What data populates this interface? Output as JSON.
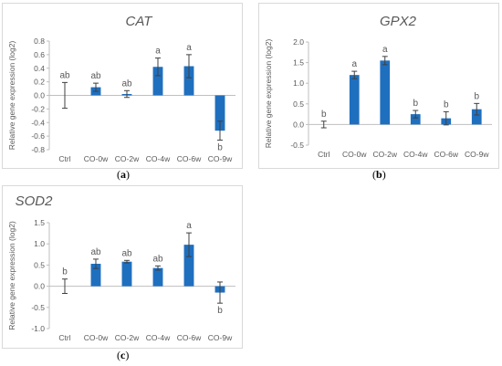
{
  "figure": {
    "captions": [
      "a",
      "b",
      "c"
    ]
  },
  "colors": {
    "bar": "#1f6fbf",
    "axis": "#bfbfbf",
    "text": "#595959",
    "frame": "#d9d9d9"
  },
  "chart_data": [
    {
      "type": "bar",
      "title": "CAT",
      "ylabel": "Relative gene expression (log2)",
      "categories": [
        "Ctrl",
        "CO-0w",
        "CO-2w",
        "CO-4w",
        "CO-6w",
        "CO-9w"
      ],
      "values": [
        0.0,
        0.12,
        0.02,
        0.42,
        0.43,
        -0.52
      ],
      "errors": [
        0.19,
        0.06,
        0.05,
        0.13,
        0.17,
        0.14
      ],
      "letters": [
        "ab",
        "ab",
        "ab",
        "a",
        "a",
        "b"
      ],
      "ylim": [
        -0.8,
        0.8
      ],
      "yticks": [
        "0.8",
        "0.6",
        "0.4",
        "0.2",
        "0.0",
        "-0.2",
        "-0.4",
        "-0.6",
        "-0.8"
      ],
      "grid": false
    },
    {
      "type": "bar",
      "title": "GPX2",
      "ylabel": "Relative gene expression (log2)",
      "categories": [
        "Ctrl",
        "CO-0w",
        "CO-2w",
        "CO-4w",
        "CO-6w",
        "CO-9w"
      ],
      "values": [
        0.0,
        1.2,
        1.55,
        0.25,
        0.15,
        0.37
      ],
      "errors": [
        0.08,
        0.09,
        0.1,
        0.09,
        0.16,
        0.14
      ],
      "letters": [
        "b",
        "a",
        "a",
        "b",
        "b",
        "b"
      ],
      "ylim": [
        -0.5,
        2.0
      ],
      "yticks": [
        "2.0",
        "1.5",
        "1.0",
        "0.5",
        "0.0",
        "-0.5"
      ],
      "grid": false
    },
    {
      "type": "bar",
      "title": "SOD2",
      "ylabel": "Relative gene expression (log2)",
      "categories": [
        "Ctrl",
        "CO-0w",
        "CO-2w",
        "CO-4w",
        "CO-6w",
        "CO-9w"
      ],
      "values": [
        0.0,
        0.53,
        0.58,
        0.43,
        0.98,
        -0.15
      ],
      "errors": [
        0.17,
        0.11,
        0.03,
        0.05,
        0.28,
        0.25
      ],
      "letters": [
        "b",
        "ab",
        "ab",
        "ab",
        "a",
        "b"
      ],
      "ylim": [
        -1.0,
        1.5
      ],
      "yticks": [
        "1.5",
        "1.0",
        "0.5",
        "0.0",
        "-0.5",
        "-1.0"
      ],
      "grid": false
    }
  ]
}
